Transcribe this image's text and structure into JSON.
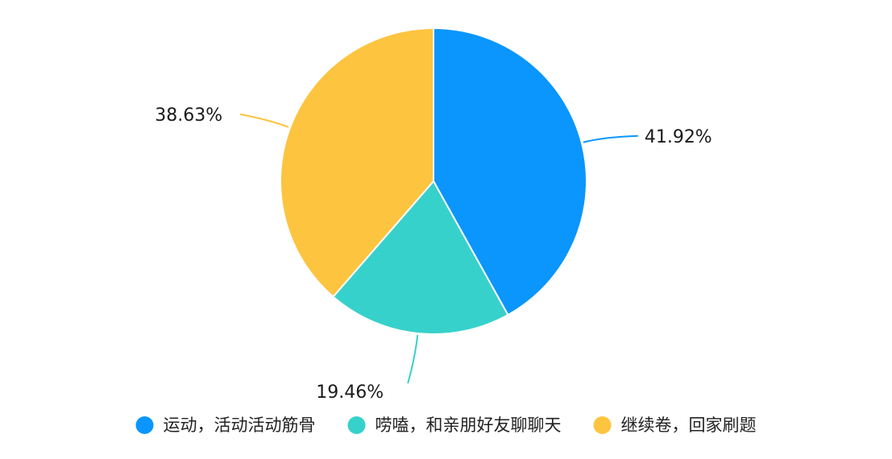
{
  "chart_data": {
    "type": "pie",
    "title": "",
    "start_angle_deg": 0,
    "direction": "clockwise",
    "legend_position": "bottom",
    "slices": [
      {
        "label": "运动，活动活动筋骨",
        "value": 41.92,
        "display": "41.92%",
        "color": "#0a96fc"
      },
      {
        "label": "唠嗑，和亲朋好友聊聊天",
        "value": 19.46,
        "display": "19.46%",
        "color": "#37d1cb"
      },
      {
        "label": "继续卷，回家刷题",
        "value": 38.63,
        "display": "38.63%",
        "color": "#fdc43f"
      }
    ]
  }
}
